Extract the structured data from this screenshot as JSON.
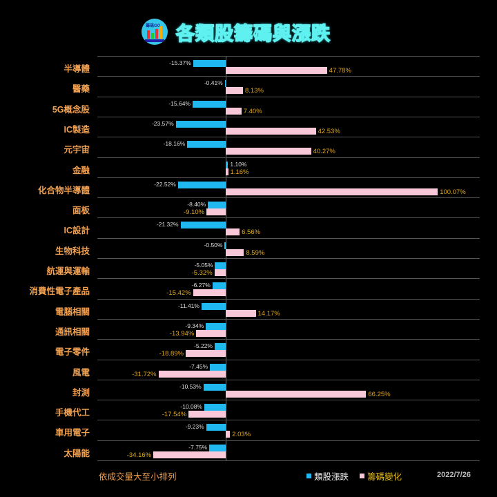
{
  "header": {
    "title": "各類股籌碼與漲跌",
    "logo_text": "籌碼GO"
  },
  "footer": {
    "note": "依成交量大至小排列",
    "legend": [
      {
        "label": "類股漲跌",
        "color": "#1fb8f0"
      },
      {
        "label": "籌碼變化",
        "color": "#f8c8d8"
      }
    ],
    "date": "2022/7/26"
  },
  "chart_data": {
    "type": "bar",
    "orientation": "horizontal",
    "title": "各類股籌碼與漲跌",
    "categories": [
      "半導體",
      "醫藥",
      "5G概念股",
      "IC製造",
      "元宇宙",
      "金融",
      "化合物半導體",
      "面板",
      "IC設計",
      "生物科技",
      "航運與運輸",
      "消費性電子產品",
      "電腦相關",
      "通訊相關",
      "電子零件",
      "風電",
      "封測",
      "手機代工",
      "車用電子",
      "太陽能"
    ],
    "series": [
      {
        "name": "類股漲跌",
        "color": "#1fb8f0",
        "values": [
          -15.37,
          -0.41,
          -15.64,
          -23.57,
          -18.16,
          1.1,
          -22.52,
          -8.4,
          -21.32,
          -0.5,
          -5.05,
          -6.27,
          -11.41,
          -9.34,
          -5.22,
          -7.45,
          -10.53,
          -10.08,
          -9.23,
          -7.75
        ]
      },
      {
        "name": "籌碼變化",
        "color": "#f8c8d8",
        "values": [
          47.78,
          8.13,
          7.4,
          42.53,
          40.27,
          1.16,
          100.07,
          -9.1,
          6.56,
          8.59,
          -5.32,
          -15.42,
          14.17,
          -13.94,
          -18.89,
          -31.72,
          66.25,
          -17.54,
          2.03,
          -34.16
        ]
      }
    ],
    "value_format": "percent",
    "legend_position": "bottom",
    "note": "依成交量大至小排列",
    "date": "2022/7/26",
    "grid": true
  }
}
